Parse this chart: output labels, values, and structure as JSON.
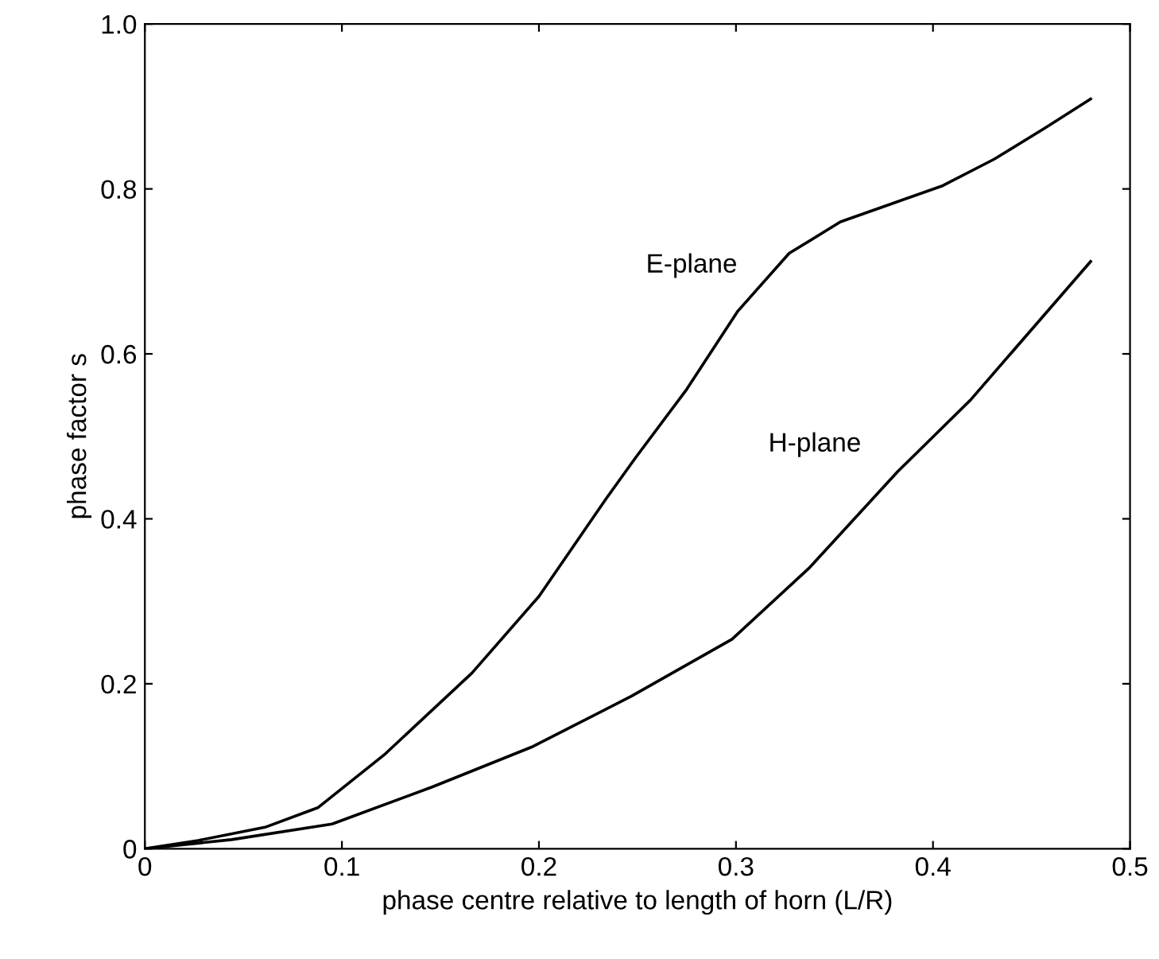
{
  "chart_data": {
    "type": "line",
    "xlabel": "phase centre relative to length of horn (L/R)",
    "ylabel": "phase factor s",
    "xlim": [
      0,
      0.5
    ],
    "ylim": [
      0,
      1
    ],
    "xticks": [
      0,
      0.1,
      0.2,
      0.3,
      0.4,
      0.5
    ],
    "yticks": [
      0,
      0.2,
      0.4,
      0.6,
      0.8,
      {
        "value": 1,
        "label": "1.0"
      }
    ],
    "grid": false,
    "legend": false,
    "marker": "none",
    "line_style": "solid",
    "series": [
      {
        "color": "#000000",
        "x": [
          0,
          0.027,
          0.061,
          0.088,
          0.122,
          0.166,
          0.2,
          0.234,
          0.249,
          0.275,
          0.301,
          0.327,
          0.353,
          0.379,
          0.405,
          0.431,
          0.457,
          0.48
        ],
        "values": [
          0,
          0.01,
          0.026,
          0.05,
          0.115,
          0.213,
          0.306,
          0.424,
          0.474,
          0.557,
          0.652,
          0.722,
          0.76,
          0.782,
          0.804,
          0.836,
          0.874,
          0.909
        ]
      },
      {
        "color": "#000000",
        "x": [
          0,
          0.044,
          0.095,
          0.146,
          0.197,
          0.247,
          0.298,
          0.337,
          0.382,
          0.419,
          0.48
        ],
        "values": [
          0,
          0.011,
          0.03,
          0.075,
          0.124,
          0.185,
          0.254,
          0.34,
          0.457,
          0.544,
          0.712
        ]
      }
    ],
    "annotations": [
      "E-plane",
      "H-plane"
    ]
  }
}
